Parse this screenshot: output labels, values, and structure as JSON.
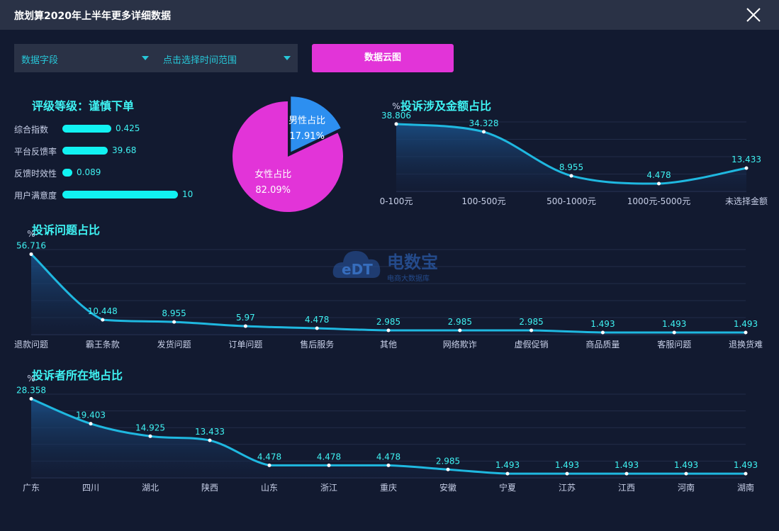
{
  "window": {
    "title": "旅划算2020年上半年更多详细数据"
  },
  "filters": {
    "field_label": "数据字段",
    "time_label": "点击选择时间范围",
    "cloud_button": "数据云图"
  },
  "rating": {
    "title": "评级等级：谨慎下单",
    "metrics": [
      {
        "label": "综合指数",
        "value": "0.425",
        "fill": 0.4
      },
      {
        "label": "平台反馈率",
        "value": "39.68",
        "fill": 0.37
      },
      {
        "label": "反馈时效性",
        "value": "0.089",
        "fill": 0.08
      },
      {
        "label": "用户满意度",
        "value": "10",
        "fill": 0.95
      }
    ]
  },
  "gender": {
    "type": "pie",
    "slices": [
      {
        "name": "男性占比",
        "label": "17.91%",
        "value": 17.91,
        "color": "#2d8ff0"
      },
      {
        "name": "女性占比",
        "label": "82.09%",
        "value": 82.09,
        "color": "#e234d8"
      }
    ]
  },
  "watermark": {
    "logo_text": "eDT",
    "brand": "电数宝",
    "slogan": "电商大数据库"
  },
  "chart_data": [
    {
      "type": "area",
      "title": "投诉涉及金额占比",
      "ylabel": "%",
      "categories": [
        "0-100元",
        "100-500元",
        "500-1000元",
        "1000元-5000元",
        "未选择金额"
      ],
      "values": [
        38.806,
        34.328,
        8.955,
        4.478,
        13.433
      ],
      "value_labels": [
        "38.806",
        "34.328",
        "8.955",
        "4.478",
        "13.433"
      ],
      "ylim": [
        0,
        40
      ],
      "color": "#1fb8e0",
      "grid": true
    },
    {
      "type": "area",
      "title": "投诉问题占比",
      "ylabel": "%",
      "categories": [
        "退款问题",
        "霸王条款",
        "发货问题",
        "订单问题",
        "售后服务",
        "其他",
        "网络欺诈",
        "虚假促销",
        "商品质量",
        "客服问题",
        "退换货难"
      ],
      "values": [
        56.716,
        10.448,
        8.955,
        5.97,
        4.478,
        2.985,
        2.985,
        2.985,
        1.493,
        1.493,
        1.493
      ],
      "value_labels": [
        "56.716",
        "10.448",
        "8.955",
        "5.97",
        "4.478",
        "2.985",
        "2.985",
        "2.985",
        "1.493",
        "1.493",
        "1.493"
      ],
      "ylim": [
        0,
        60
      ],
      "color": "#1fb8e0",
      "grid": true
    },
    {
      "type": "area",
      "title": "投诉者所在地占比",
      "ylabel": "%",
      "categories": [
        "广东",
        "四川",
        "湖北",
        "陕西",
        "山东",
        "浙江",
        "重庆",
        "安徽",
        "宁夏",
        "江苏",
        "江西",
        "河南",
        "湖南"
      ],
      "values": [
        28.358,
        19.403,
        14.925,
        13.433,
        4.478,
        4.478,
        4.478,
        2.985,
        1.493,
        1.493,
        1.493,
        1.493,
        1.493
      ],
      "value_labels": [
        "28.358",
        "19.403",
        "14.925",
        "13.433",
        "4.478",
        "4.478",
        "4.478",
        "2.985",
        "1.493",
        "1.493",
        "1.493",
        "1.493",
        "1.493"
      ],
      "ylim": [
        0,
        30
      ],
      "color": "#1fb8e0",
      "grid": true
    }
  ]
}
